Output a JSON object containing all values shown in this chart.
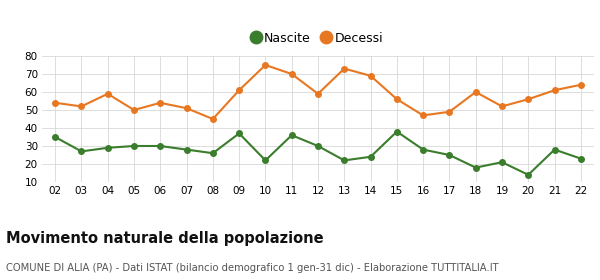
{
  "years": [
    "02",
    "03",
    "04",
    "05",
    "06",
    "07",
    "08",
    "09",
    "10",
    "11",
    "12",
    "13",
    "14",
    "15",
    "16",
    "17",
    "18",
    "19",
    "20",
    "21",
    "22"
  ],
  "nascite": [
    35,
    27,
    29,
    30,
    30,
    28,
    26,
    37,
    22,
    36,
    30,
    22,
    24,
    38,
    28,
    25,
    18,
    21,
    14,
    28,
    23
  ],
  "decessi": [
    54,
    52,
    59,
    50,
    54,
    51,
    45,
    61,
    75,
    70,
    59,
    73,
    69,
    56,
    47,
    49,
    60,
    52,
    56,
    61,
    64
  ],
  "nascite_color": "#3a7d2c",
  "decessi_color": "#e87722",
  "title": "Movimento naturale della popolazione",
  "subtitle": "COMUNE DI ALIA (PA) - Dati ISTAT (bilancio demografico 1 gen-31 dic) - Elaborazione TUTTITALIA.IT",
  "legend_nascite": "Nascite",
  "legend_decessi": "Decessi",
  "ylim": [
    10,
    80
  ],
  "yticks": [
    10,
    20,
    30,
    40,
    50,
    60,
    70,
    80
  ],
  "bg_color": "#ffffff",
  "plot_bg_color": "#ffffff",
  "grid_color": "#d8d8d8",
  "title_fontsize": 10.5,
  "subtitle_fontsize": 7.2,
  "marker_size": 4,
  "linewidth": 1.5
}
